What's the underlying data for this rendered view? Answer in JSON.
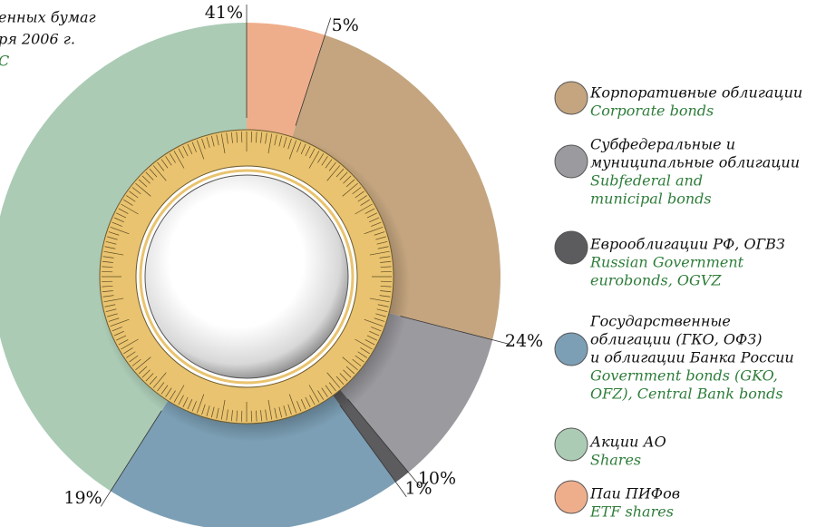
{
  "chart_data": {
    "type": "donut",
    "title_lines": [
      "енных бумаг",
      "ря 2006 г."
    ],
    "title_en": "С",
    "series": [
      {
        "name": [
          "Корпоративные облигации"
        ],
        "name_en": [
          "Corporate bonds"
        ],
        "color": "#c4a57f",
        "value": 24,
        "value_label": "24%"
      },
      {
        "name": [
          "Субфедеральные и",
          "муниципальные облигации"
        ],
        "name_en": [
          "Subfederal and",
          "municipal bonds"
        ],
        "color": "#9b9a9f",
        "value": 10,
        "value_label": "10%"
      },
      {
        "name": [
          "Еврооблигации РФ, ОГВЗ"
        ],
        "name_en": [
          "Russian Government",
          "eurobonds, OGVZ"
        ],
        "color": "#5c5b5e",
        "value": 1,
        "value_label": "1%"
      },
      {
        "name": [
          "Государственные",
          "облигации (ГКО, ОФЗ)",
          "и облигации Банка России"
        ],
        "name_en": [
          "Government bonds (GKO,",
          "OFZ), Central Bank bonds"
        ],
        "color": "#7c9fb5",
        "value": 19,
        "value_label": "19%"
      },
      {
        "name": [
          "Акции АО"
        ],
        "name_en": [
          "Shares"
        ],
        "color": "#abcbb5",
        "value": 41,
        "value_label": "41%"
      },
      {
        "name": [
          "Паи ПИФов"
        ],
        "name_en": [
          "ETF shares"
        ],
        "color": "#efae8b",
        "value": 5,
        "value_label": "5%"
      }
    ]
  }
}
